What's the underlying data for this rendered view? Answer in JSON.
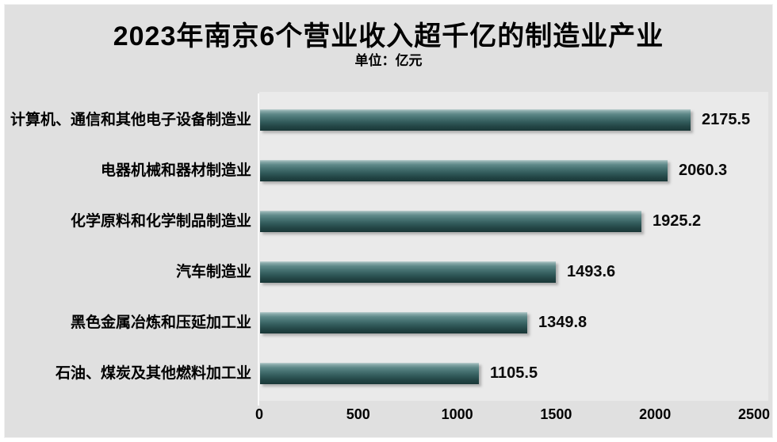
{
  "title": "2023年南京6个营业收入超千亿的制造业产业",
  "subtitle": "单位：亿元",
  "colors": {
    "panel_bg": "#e0e0e0",
    "plot_bg": "#eaeaea",
    "bar_light": "#bdd0d0",
    "bar_dark": "#193737",
    "text": "#000000"
  },
  "chart_data": {
    "type": "bar",
    "orientation": "horizontal",
    "title": "2023年南京6个营业收入超千亿的制造业产业",
    "subtitle": "单位：亿元",
    "categories": [
      "计算机、通信和其他电子设备制造业",
      "电器机械和器材制造业",
      "化学原料和化学制品制造业",
      "汽车制造业",
      "黑色金属冶炼和压延加工业",
      "石油、煤炭及其他燃料加工业"
    ],
    "values": [
      2175.5,
      2060.3,
      1925.2,
      1493.6,
      1349.8,
      1105.5
    ],
    "value_labels": [
      "2175.5",
      "2060.3",
      "1925.2",
      "1493.6",
      "1349.8",
      "1105.5"
    ],
    "xlabel": "",
    "ylabel": "",
    "xlim": [
      0,
      2500
    ],
    "xticks": [
      0,
      500,
      1000,
      1500,
      2000,
      2500
    ],
    "grid": false,
    "legend": false,
    "data_labels": "outside-end"
  }
}
